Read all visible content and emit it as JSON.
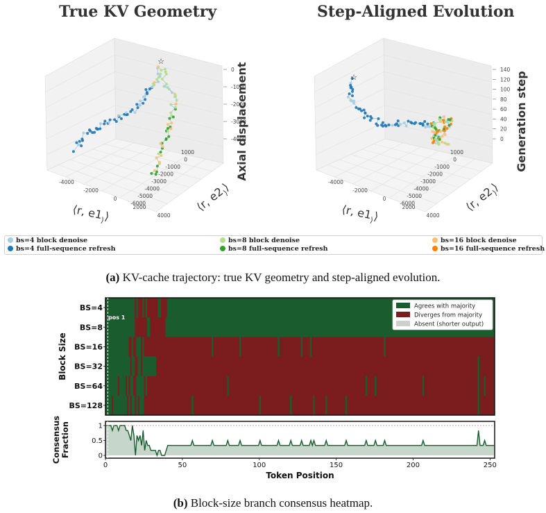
{
  "figure_a": {
    "caption_label": "(a)",
    "caption_text": " KV-cache trajectory: true KV geometry and step-aligned evolution.",
    "legend": [
      {
        "label": "bs=4 block denoise",
        "color": "#a6cee3"
      },
      {
        "label": "bs=4 full-sequence refresh",
        "color": "#1f78b4"
      },
      {
        "label": "bs=8 block denoise",
        "color": "#b2df8a"
      },
      {
        "label": "bs=8 full-sequence refresh",
        "color": "#33a02c"
      },
      {
        "label": "bs=16 block denoise",
        "color": "#fdbf6f"
      },
      {
        "label": "bs=16 full-sequence refresh",
        "color": "#ff7f00"
      }
    ]
  },
  "figure_b": {
    "caption_label": "(b)",
    "caption_text": " Block-size branch consensus heatmap."
  },
  "chart_data": [
    {
      "type": "scatter",
      "title": "True KV Geometry",
      "xlabel": "⟨r, e1⟩",
      "ylabel": "⟨r, e2⟩",
      "zlabel": "Axial displacement",
      "x_ticks": [
        "-4000",
        "-2000",
        "0",
        "2000",
        "4000"
      ],
      "y_ticks": [
        "1000",
        "0",
        "-1000",
        "-2000",
        "-3000",
        "-4000",
        "-5000",
        "-6000"
      ],
      "z_ticks": [
        "0",
        "-1000",
        "-2000",
        "-3000",
        "-4000"
      ],
      "marker": "start point (star)",
      "series": [
        {
          "name": "bs=4 block denoise"
        },
        {
          "name": "bs=4 full-sequence refresh"
        },
        {
          "name": "bs=8 block denoise"
        },
        {
          "name": "bs=8 full-sequence refresh"
        },
        {
          "name": "bs=16 block denoise"
        },
        {
          "name": "bs=16 full-sequence refresh"
        }
      ]
    },
    {
      "type": "scatter",
      "title": "Step-Aligned Evolution",
      "xlabel": "⟨r, e1⟩",
      "ylabel": "⟨r, e2⟩",
      "zlabel": "Generation step",
      "x_ticks": [
        "-4000",
        "-2000",
        "0",
        "2000",
        "4000"
      ],
      "y_ticks": [
        "1000",
        "0",
        "-1000",
        "-2000",
        "-3000",
        "-4000",
        "-5000",
        "-6000"
      ],
      "z_ticks": [
        "140",
        "120",
        "100",
        "80",
        "60",
        "40",
        "20",
        "0"
      ],
      "marker": "start point (star)",
      "series": [
        {
          "name": "bs=4 block denoise"
        },
        {
          "name": "bs=4 full-sequence refresh"
        },
        {
          "name": "bs=8 block denoise"
        },
        {
          "name": "bs=8 full-sequence refresh"
        },
        {
          "name": "bs=16 block denoise"
        },
        {
          "name": "bs=16 full-sequence refresh"
        }
      ]
    },
    {
      "type": "heatmap",
      "xlim": [
        0,
        253
      ],
      "ylabel": "Block Size",
      "rows": [
        "BS=4",
        "BS=8",
        "BS=16",
        "BS=32",
        "BS=64",
        "BS=128"
      ],
      "annotation": "pos 1",
      "legend": [
        {
          "label": "Agrees with majority",
          "color": "#1a5c2e"
        },
        {
          "label": "Diverges from majority",
          "color": "#7b1c1e"
        },
        {
          "label": "Absent (shorter output)",
          "color": "#cfcfcf"
        }
      ]
    },
    {
      "type": "area",
      "xlabel": "Token Position",
      "ylabel": "Consensus Fraction",
      "xlim": [
        0,
        253
      ],
      "ylim": [
        0,
        1
      ],
      "x_ticks": [
        0,
        50,
        100,
        150,
        200,
        250
      ],
      "y_ticks": [
        "0",
        "0.5",
        "1"
      ],
      "color": "#1a5c2e"
    }
  ]
}
